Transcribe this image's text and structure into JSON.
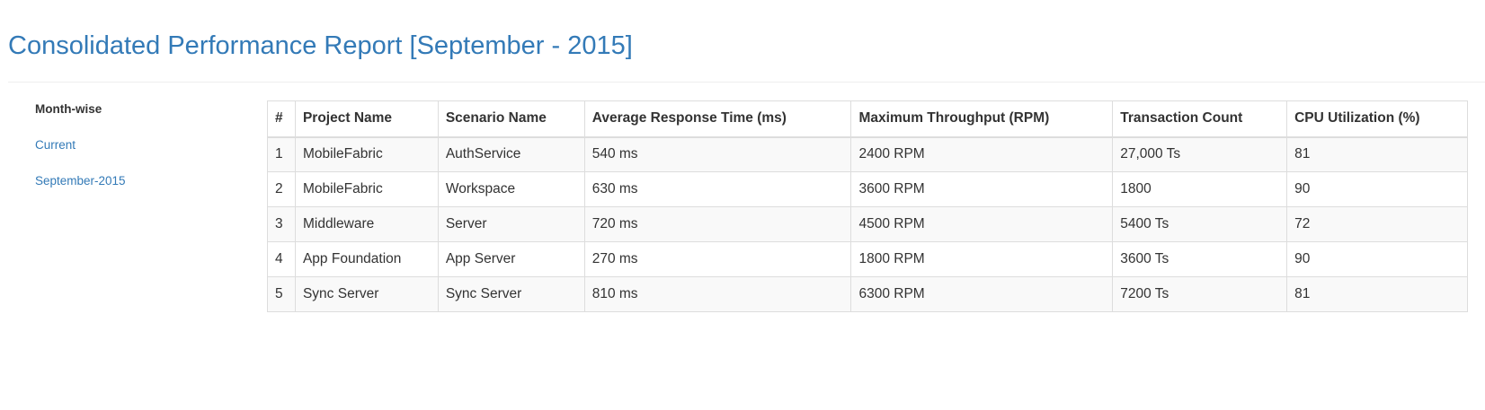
{
  "header": {
    "title": "Consolidated Performance Report [September - 2015]"
  },
  "sidebar": {
    "heading": "Month-wise",
    "links": [
      {
        "label": "Current"
      },
      {
        "label": "September-2015"
      }
    ]
  },
  "table": {
    "columns": [
      "#",
      "Project Name",
      "Scenario Name",
      "Average Response Time (ms)",
      "Maximum Throughput (RPM)",
      "Transaction Count",
      "CPU Utilization (%)"
    ],
    "rows": [
      [
        "1",
        "MobileFabric",
        "AuthService",
        "540 ms",
        "2400 RPM",
        "27,000 Ts",
        "81"
      ],
      [
        "2",
        "MobileFabric",
        "Workspace",
        "630 ms",
        "3600 RPM",
        "1800",
        "90"
      ],
      [
        "3",
        "Middleware",
        "Server",
        "720 ms",
        "4500 RPM",
        "5400 Ts",
        "72"
      ],
      [
        "4",
        "App Foundation",
        "App Server",
        "270 ms",
        "1800 RPM",
        "3600 Ts",
        "90"
      ],
      [
        "5",
        "Sync Server",
        "Sync Server",
        "810 ms",
        "6300 RPM",
        "7200 Ts",
        "81"
      ]
    ]
  },
  "colors": {
    "accent": "#337ab7",
    "text": "#333333",
    "border": "#dddddd",
    "stripe": "#f9f9f9"
  }
}
